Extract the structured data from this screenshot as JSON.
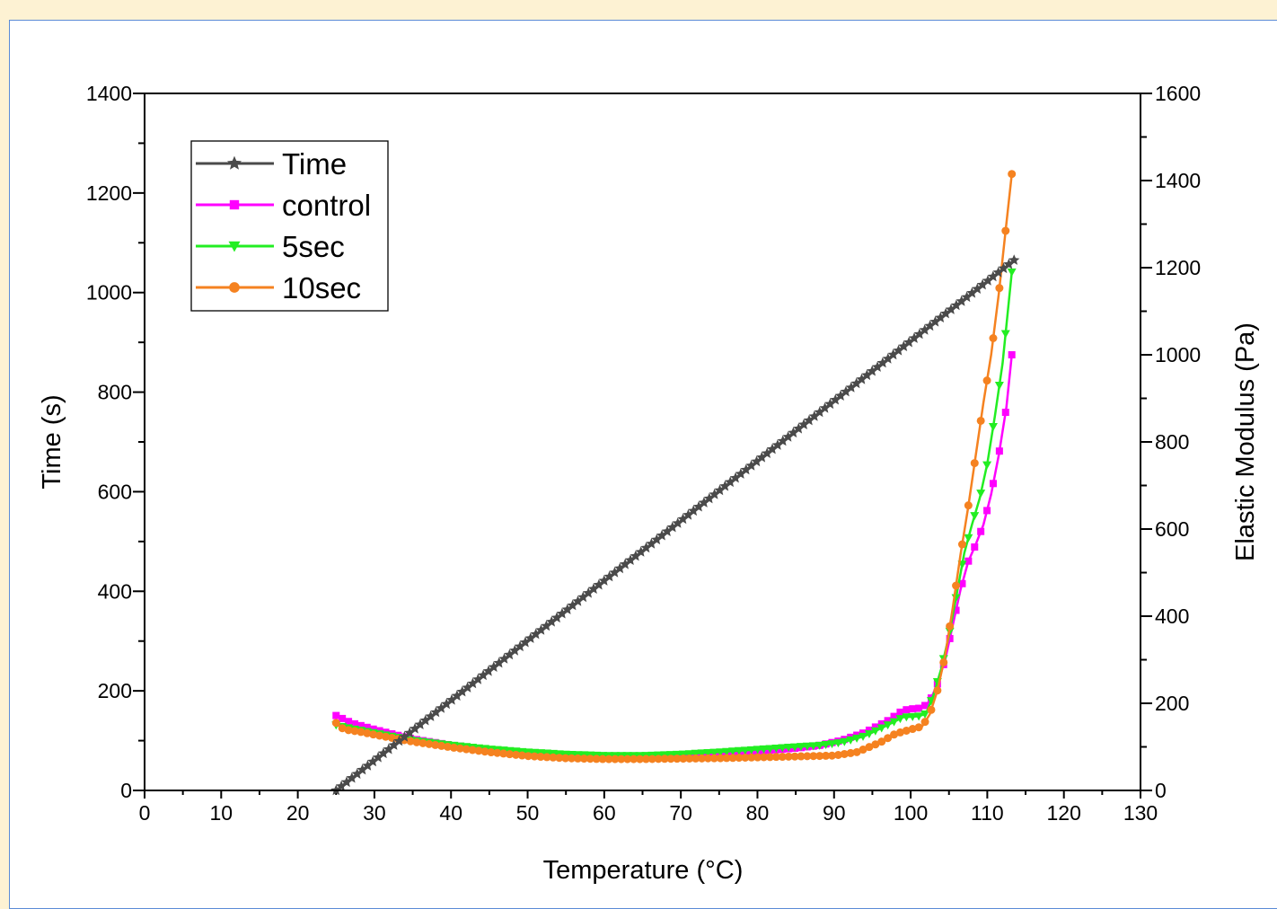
{
  "chart_data": {
    "type": "line",
    "xlabel": "Temperature (°C)",
    "ylabel_left": "Time (s)",
    "ylabel_right": "Elastic Modulus (Pa)",
    "xlim": [
      0,
      130
    ],
    "ylim_left": [
      0,
      1400
    ],
    "ylim_right": [
      0,
      1600
    ],
    "x_ticks": [
      0,
      10,
      20,
      30,
      40,
      50,
      60,
      70,
      80,
      90,
      100,
      110,
      120,
      130
    ],
    "y_left_ticks": [
      0,
      200,
      400,
      600,
      800,
      1000,
      1200,
      1400
    ],
    "y_right_ticks": [
      0,
      200,
      400,
      600,
      800,
      1000,
      1200,
      1400,
      1600
    ],
    "grid": false,
    "legend_position": "top-left",
    "series": [
      {
        "name": "Time",
        "axis": "left",
        "color": "#4a4a4a",
        "marker": "star",
        "points": [
          [
            25,
            0
          ],
          [
            113.5,
            1065
          ]
        ]
      },
      {
        "name": "control",
        "axis": "right",
        "color": "#ff00ff",
        "marker": "square",
        "points": [
          [
            25,
            172
          ],
          [
            27,
            155
          ],
          [
            30,
            140
          ],
          [
            35,
            118
          ],
          [
            40,
            104
          ],
          [
            45,
            94
          ],
          [
            50,
            86
          ],
          [
            55,
            81
          ],
          [
            60,
            78
          ],
          [
            65,
            78
          ],
          [
            70,
            80
          ],
          [
            75,
            84
          ],
          [
            80,
            90
          ],
          [
            85,
            97
          ],
          [
            88,
            103
          ],
          [
            91,
            115
          ],
          [
            94,
            133
          ],
          [
            97,
            160
          ],
          [
            99,
            184
          ],
          [
            100.5,
            188
          ],
          [
            101.5,
            189
          ],
          [
            102.5,
            205
          ],
          [
            103.5,
            245
          ],
          [
            104.5,
            300
          ],
          [
            105.5,
            380
          ],
          [
            106.5,
            460
          ],
          [
            107.5,
            525
          ],
          [
            108.5,
            565
          ],
          [
            109.5,
            610
          ],
          [
            110.5,
            680
          ],
          [
            111.5,
            770
          ],
          [
            112.5,
            880
          ],
          [
            113.2,
            1000
          ]
        ]
      },
      {
        "name": "5sec",
        "axis": "right",
        "color": "#22ee22",
        "marker": "triangle-down",
        "points": [
          [
            25,
            150
          ],
          [
            27,
            142
          ],
          [
            30,
            132
          ],
          [
            35,
            115
          ],
          [
            40,
            104
          ],
          [
            45,
            95
          ],
          [
            50,
            88
          ],
          [
            55,
            83
          ],
          [
            60,
            80
          ],
          [
            65,
            80
          ],
          [
            70,
            83
          ],
          [
            75,
            88
          ],
          [
            80,
            94
          ],
          [
            85,
            100
          ],
          [
            88,
            103
          ],
          [
            91,
            110
          ],
          [
            94,
            125
          ],
          [
            97,
            150
          ],
          [
            99,
            168
          ],
          [
            101,
            170
          ],
          [
            102,
            176
          ],
          [
            103,
            220
          ],
          [
            104,
            280
          ],
          [
            105,
            355
          ],
          [
            106,
            450
          ],
          [
            107,
            545
          ],
          [
            108,
            610
          ],
          [
            109,
            670
          ],
          [
            110,
            750
          ],
          [
            111,
            860
          ],
          [
            112,
            980
          ],
          [
            113.2,
            1190
          ]
        ]
      },
      {
        "name": "10sec",
        "axis": "right",
        "color": "#f58220",
        "marker": "circle",
        "points": [
          [
            25,
            155
          ],
          [
            26,
            140
          ],
          [
            28,
            135
          ],
          [
            30,
            128
          ],
          [
            35,
            112
          ],
          [
            40,
            99
          ],
          [
            45,
            88
          ],
          [
            50,
            79
          ],
          [
            55,
            74
          ],
          [
            60,
            72
          ],
          [
            65,
            72
          ],
          [
            70,
            73
          ],
          [
            75,
            74
          ],
          [
            80,
            76
          ],
          [
            85,
            78
          ],
          [
            90,
            80
          ],
          [
            93,
            88
          ],
          [
            96,
            110
          ],
          [
            98,
            130
          ],
          [
            100,
            140
          ],
          [
            101.5,
            147
          ],
          [
            102.5,
            175
          ],
          [
            103.5,
            230
          ],
          [
            104.5,
            310
          ],
          [
            105.5,
            420
          ],
          [
            106.5,
            540
          ],
          [
            107.5,
            650
          ],
          [
            108.5,
            770
          ],
          [
            109.5,
            890
          ],
          [
            110.5,
            1000
          ],
          [
            111.5,
            1140
          ],
          [
            112.3,
            1270
          ],
          [
            113.2,
            1415
          ]
        ]
      }
    ]
  }
}
